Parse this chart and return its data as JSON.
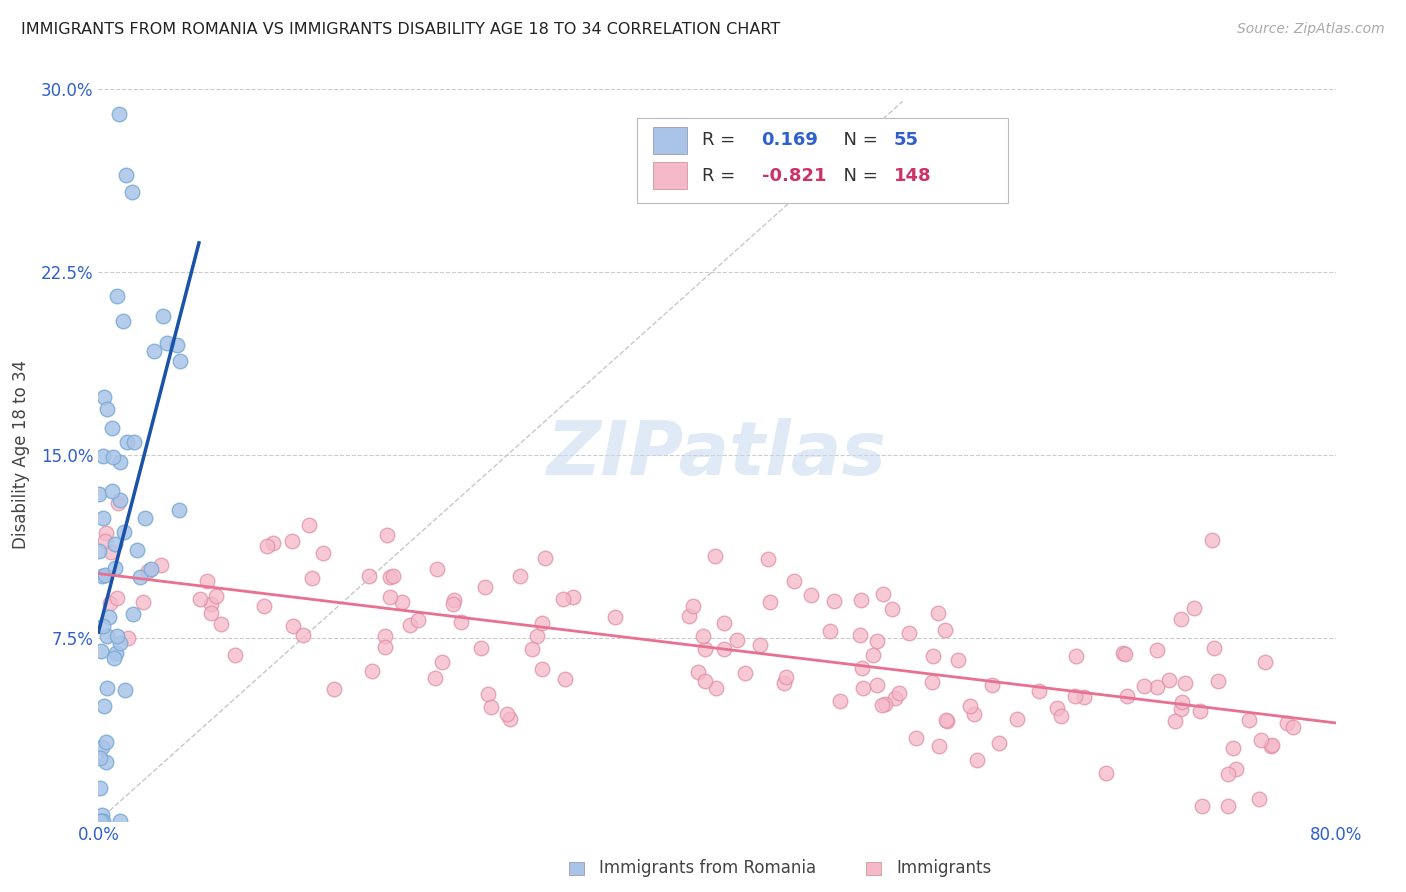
{
  "title": "IMMIGRANTS FROM ROMANIA VS IMMIGRANTS DISABILITY AGE 18 TO 34 CORRELATION CHART",
  "source": "Source: ZipAtlas.com",
  "ylabel": "Disability Age 18 to 34",
  "xlim": [
    0.0,
    0.8
  ],
  "ylim": [
    0.0,
    0.3
  ],
  "xticks": [
    0.0,
    0.2,
    0.4,
    0.6,
    0.8
  ],
  "xtick_labels": [
    "0.0%",
    "",
    "",
    "",
    "80.0%"
  ],
  "yticks": [
    0.0,
    0.075,
    0.15,
    0.225,
    0.3
  ],
  "ytick_labels": [
    "",
    "7.5%",
    "15.0%",
    "22.5%",
    "30.0%"
  ],
  "blue_n": 55,
  "pink_n": 148,
  "background_color": "#ffffff",
  "grid_color": "#cccccc",
  "blue_scatter_color": "#aac4e8",
  "blue_edge_color": "#7aaad4",
  "blue_line_color": "#1a52a8",
  "pink_scatter_color": "#f5b8c8",
  "pink_edge_color": "#e090a8",
  "pink_line_color": "#e87090",
  "watermark_text": "ZIPatlas",
  "ref_line_color": "#c8c8c8",
  "legend_r_blue": "0.169",
  "legend_n_blue": "55",
  "legend_r_pink": "-0.821",
  "legend_n_pink": "148",
  "legend_label_blue": "Immigrants from Romania",
  "legend_label_pink": "Immigrants"
}
